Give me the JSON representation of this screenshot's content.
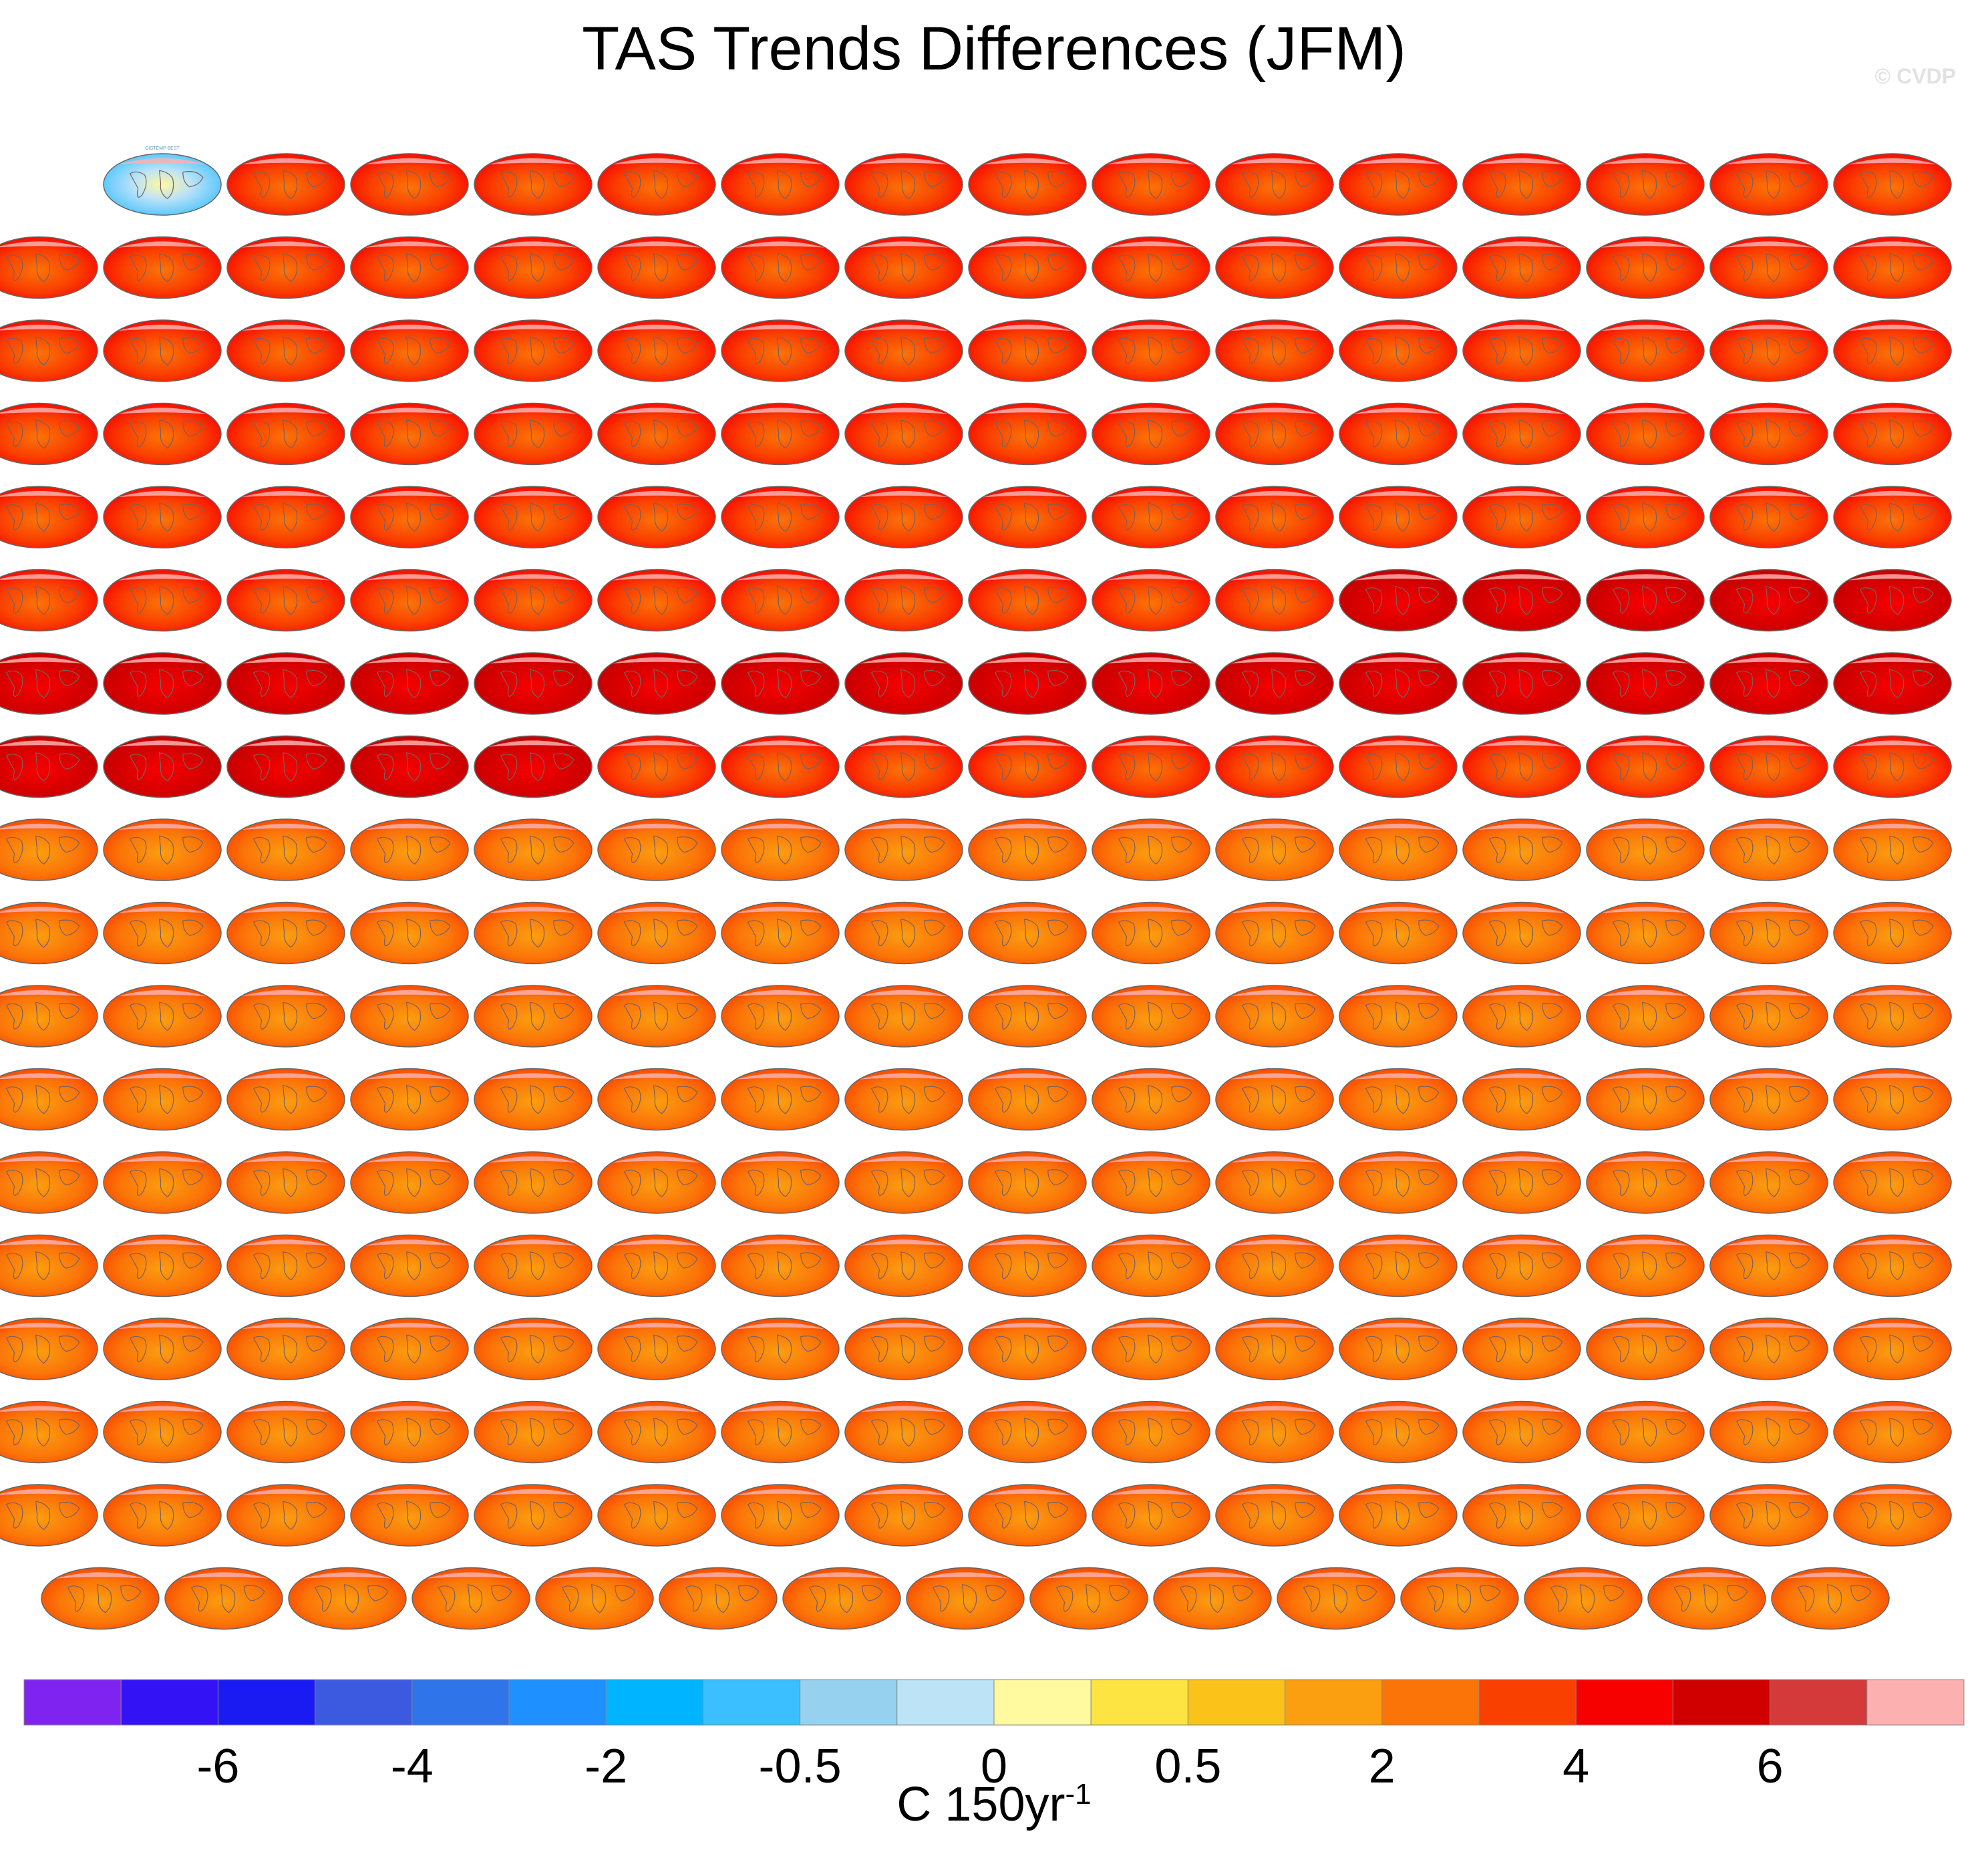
{
  "title": "TAS Trends Differences (JFM)",
  "watermark": "© CVDP",
  "chart_data": {
    "type": "heatmap",
    "title": "TAS Trends Differences (JFM)",
    "grid": {
      "rows_full": 17,
      "cols": 16,
      "last_row_panels": 15,
      "first_row_blank_cells": 1,
      "total_panels": 286
    },
    "panels": {
      "first_panel_label": "GISTEMP BEST",
      "description_kind": "global maps of TAS trend differences vs BEST",
      "dominant_values": "positive, mostly 2 to 6 C 150yr-1"
    },
    "colorbar": {
      "colors": [
        "#7f24f0",
        "#3312f5",
        "#1a1af2",
        "#3b5ae0",
        "#2f74e8",
        "#1e90ff",
        "#00b4ff",
        "#3cbfff",
        "#96d2f0",
        "#bde3f7",
        "#fff9a0",
        "#fde443",
        "#fbc21a",
        "#fb9e10",
        "#fb7408",
        "#fa4000",
        "#f70000",
        "#d00000",
        "#d43a3a",
        "#fcb0b0"
      ],
      "tick_labels": [
        "-6",
        "-4",
        "-2",
        "-0.5",
        "0",
        "0.5",
        "2",
        "4",
        "6"
      ],
      "tick_after_box": [
        2,
        4,
        6,
        8,
        10,
        12,
        14,
        16,
        18
      ]
    },
    "unit_label": {
      "base": "C 150yr",
      "sup": "-1"
    }
  }
}
